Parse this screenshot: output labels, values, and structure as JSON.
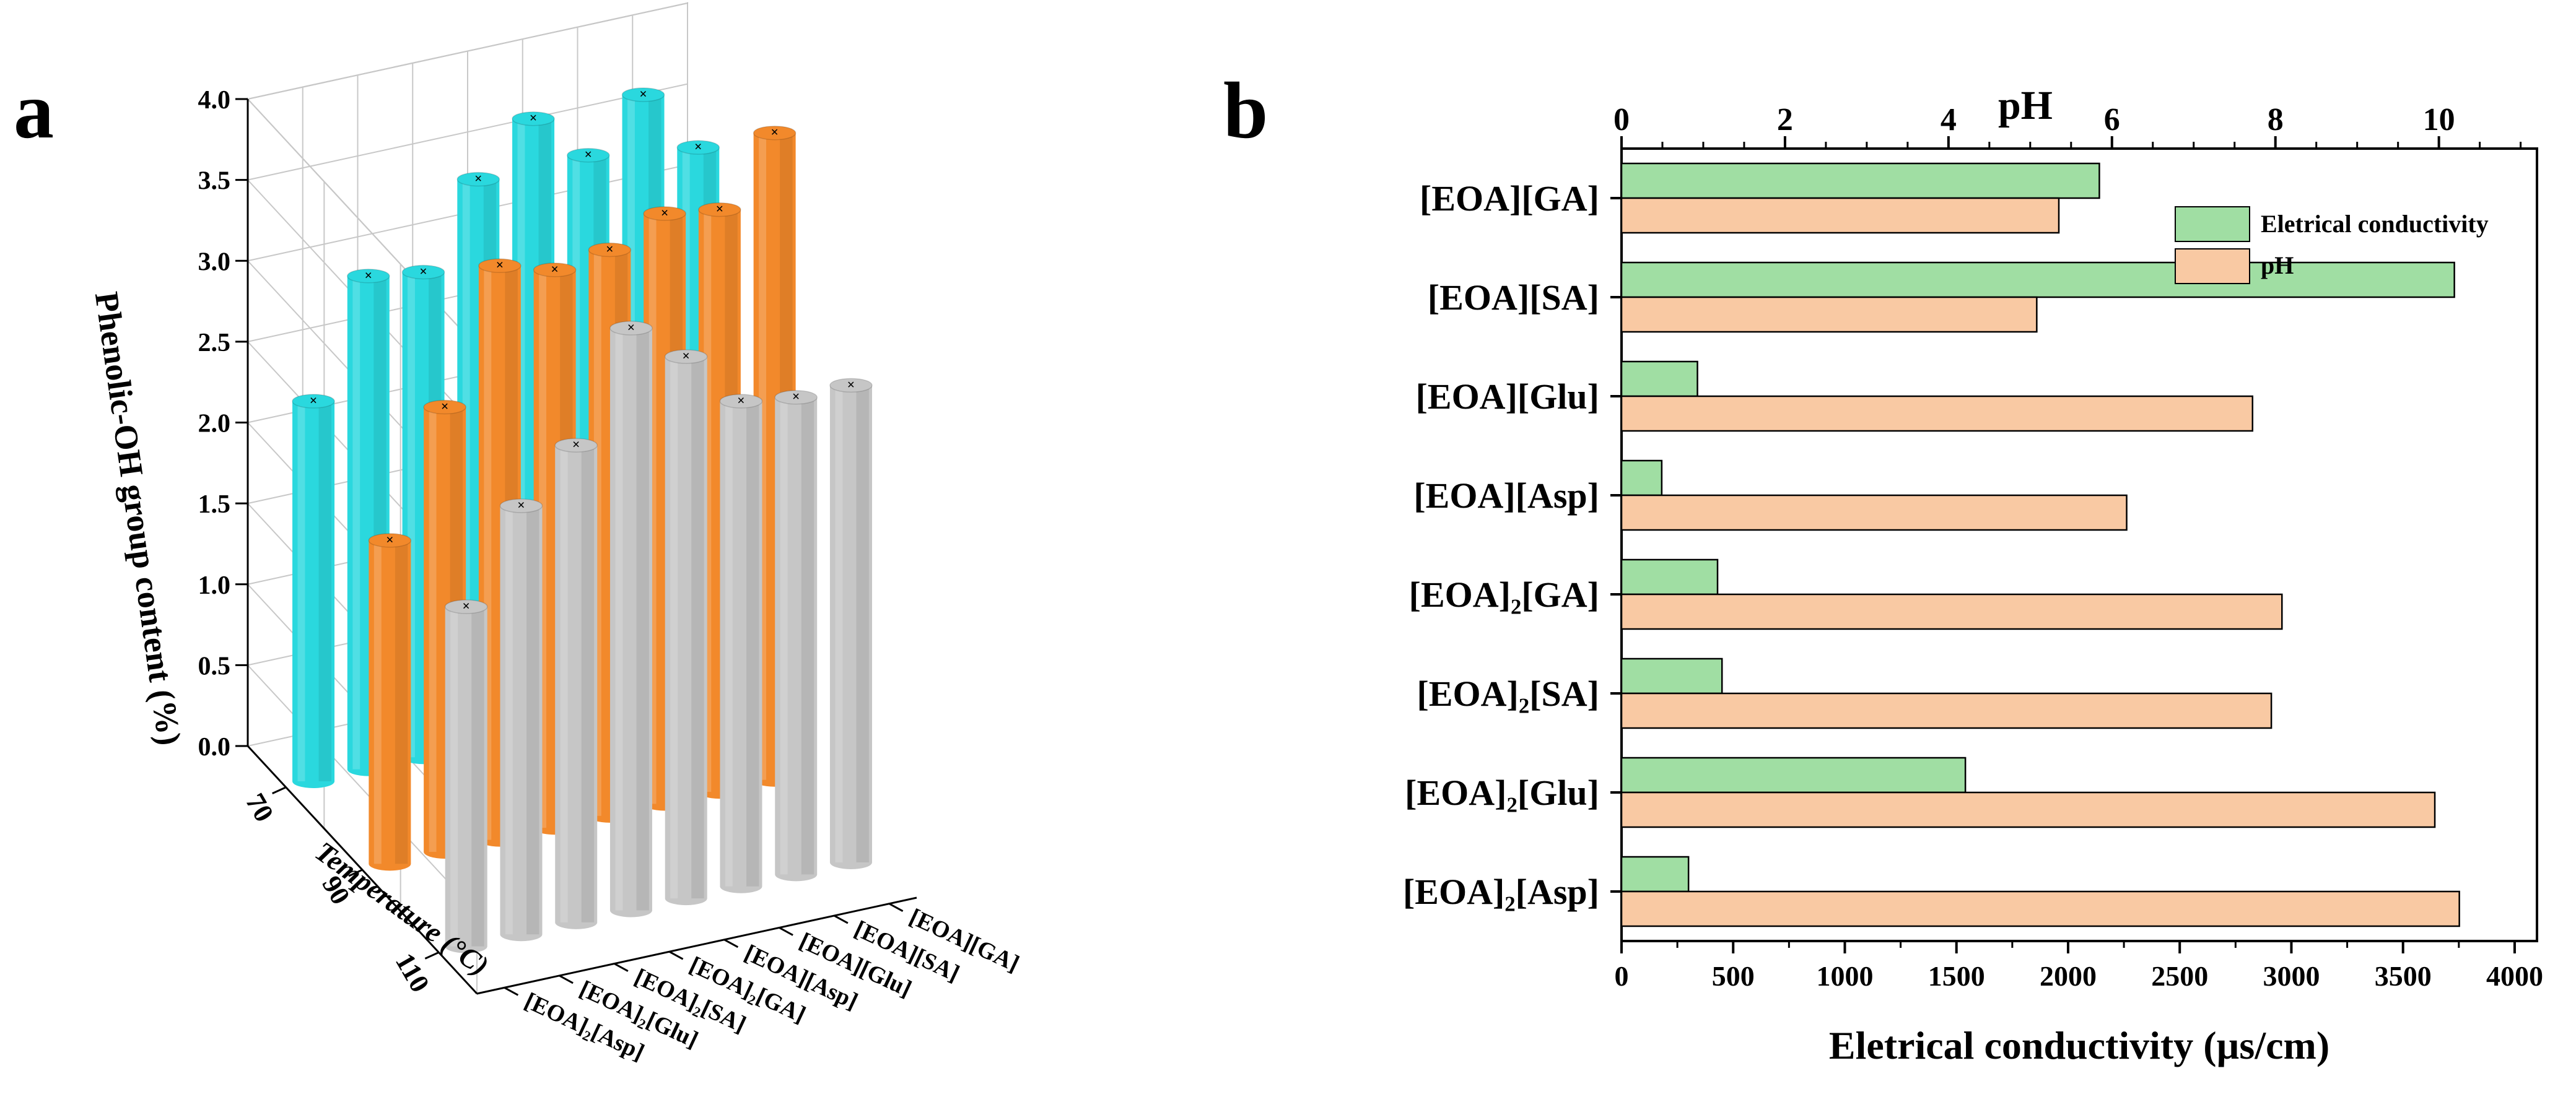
{
  "panels": {
    "a": "a",
    "b": "b"
  },
  "colors": {
    "cyan": "#2ad8de",
    "orange": "#f2892b",
    "gray": "#c6c6c6",
    "green": "#a0dea3",
    "peach": "#f9c9a3",
    "axis": "#000000",
    "grid": "#c8c8c8"
  },
  "chart_data": [
    {
      "type": "bar",
      "variant": "3d-cylinder",
      "title": "",
      "zlabel": "Phenolic-OH group content (%)",
      "xlabel": "Temperature (°C)",
      "ylabel": "",
      "zlim": [
        0,
        4.0
      ],
      "zticks": [
        "0.0",
        "0.5",
        "1.0",
        "1.5",
        "2.0",
        "2.5",
        "3.0",
        "3.5",
        "4.0"
      ],
      "temperatures": [
        "70",
        "90",
        "110"
      ],
      "catalysts": [
        "[EOA][GA]",
        "[EOA][SA]",
        "[EOA][Glu]",
        "[EOA][Asp]",
        "[EOA]₂[GA]",
        "[EOA]₂[SA]",
        "[EOA]₂[Glu]",
        "[EOA]₂[Asp]"
      ],
      "series": [
        {
          "name": "70",
          "color": "cyan",
          "values": [
            3.4,
            3.8,
            3.5,
            3.8,
            3.5,
            3.0,
            3.05,
            2.35
          ]
        },
        {
          "name": "90",
          "color": "orange",
          "values": [
            4.0,
            3.6,
            3.65,
            3.5,
            3.45,
            3.55,
            2.75,
            2.0
          ]
        },
        {
          "name": "110",
          "color": "gray",
          "values": [
            2.95,
            2.95,
            3.0,
            3.35,
            3.6,
            2.95,
            2.65,
            2.1
          ]
        }
      ]
    },
    {
      "type": "bar",
      "orientation": "horizontal",
      "title": "",
      "xlabel": "Eletrical conductivity (µs/cm)",
      "x2label": "pH",
      "categories": [
        "[EOA][GA]",
        "[EOA][SA]",
        "[EOA][Glu]",
        "[EOA][Asp]",
        "[EOA]₂[GA]",
        "[EOA]₂[SA]",
        "[EOA]₂[Glu]",
        "[EOA]₂[Asp]"
      ],
      "xlim": [
        0,
        4100
      ],
      "xticks": [
        0,
        500,
        1000,
        1500,
        2000,
        2500,
        3000,
        3500,
        4000
      ],
      "x2lim": [
        0,
        11.2
      ],
      "x2ticks": [
        0,
        2,
        4,
        6,
        8,
        10
      ],
      "legend_position": "top-right",
      "series": [
        {
          "name": "Eletrical conductivity",
          "axis": "bottom",
          "color": "green",
          "values": [
            2140,
            3730,
            340,
            180,
            430,
            450,
            1540,
            300
          ]
        },
        {
          "name": "pH",
          "axis": "top",
          "color": "peach",
          "values": [
            5.35,
            5.08,
            7.72,
            6.18,
            8.08,
            7.95,
            9.95,
            10.25
          ]
        }
      ]
    }
  ]
}
